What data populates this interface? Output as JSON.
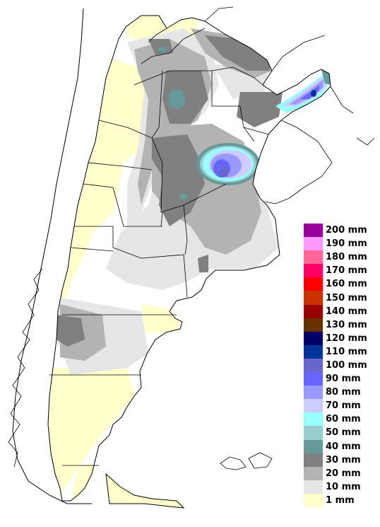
{
  "legend": [
    {
      "label": "200 mm",
      "color": "#990099"
    },
    {
      "label": "190 mm",
      "color": "#ff99ff"
    },
    {
      "label": "180 mm",
      "color": "#ff6699"
    },
    {
      "label": "170 mm",
      "color": "#ff0066"
    },
    {
      "label": "160 mm",
      "color": "#ff0000"
    },
    {
      "label": "150 mm",
      "color": "#cc3300"
    },
    {
      "label": "140 mm",
      "color": "#990000"
    },
    {
      "label": "130 mm",
      "color": "#663300"
    },
    {
      "label": "120 mm",
      "color": "#000066"
    },
    {
      "label": "110 mm",
      "color": "#003399"
    },
    {
      "label": "100 mm",
      "color": "#6666cc"
    },
    {
      "label": "90 mm",
      "color": "#6666ff"
    },
    {
      "label": "80 mm",
      "color": "#9999ff"
    },
    {
      "label": "70 mm",
      "color": "#ccccff"
    },
    {
      "label": "60 mm",
      "color": "#99ffff"
    },
    {
      "label": "50 mm",
      "color": "#99cccc"
    },
    {
      "label": "40 mm",
      "color": "#669999"
    },
    {
      "label": "30 mm",
      "color": "#808080"
    },
    {
      "label": "20 mm",
      "color": "#b3b3b3"
    },
    {
      "label": "10 mm",
      "color": "#e6e6e6"
    },
    {
      "label": "1 mm",
      "color": "#ffffcc"
    }
  ]
}
